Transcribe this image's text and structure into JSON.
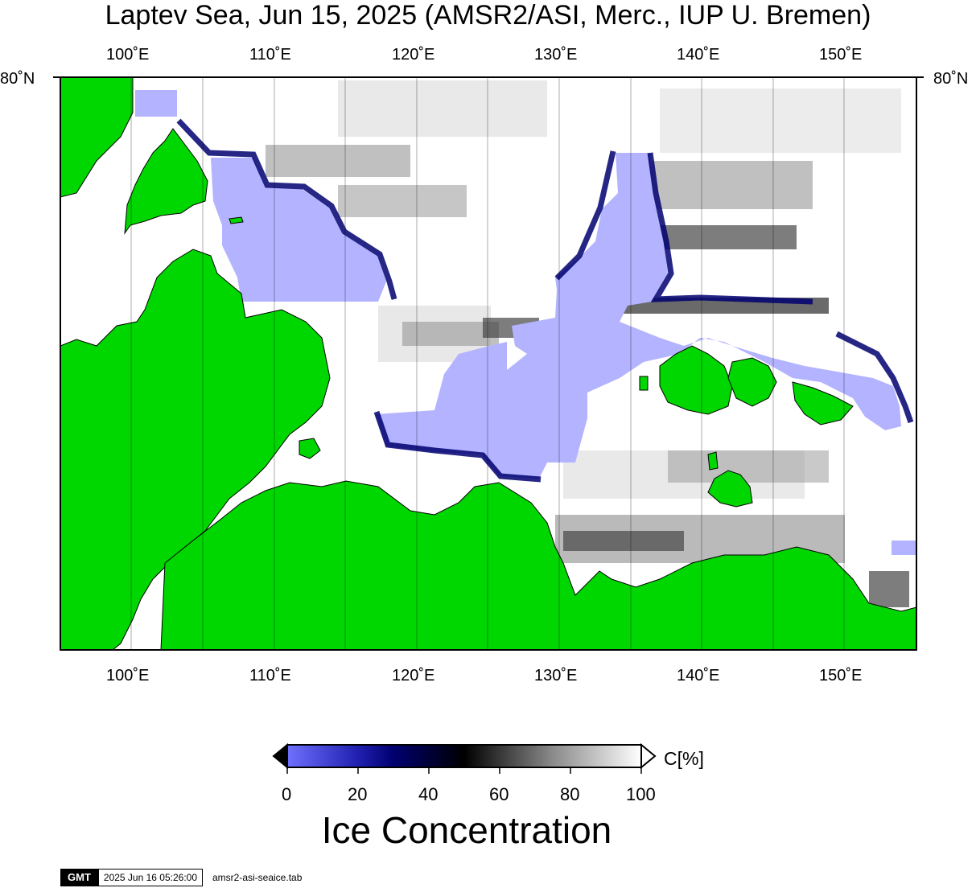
{
  "title": "Laptev Sea, Jun 15, 2025 (AMSR2/ASI, Merc., IUP U. Bremen)",
  "map": {
    "lon_ticks": [
      "100˚E",
      "110˚E",
      "120˚E",
      "130˚E",
      "140˚E",
      "150˚E"
    ],
    "lat_tick": "80˚N",
    "land_color": "#00d600",
    "open_water_color": "#b3b3ff",
    "background_color": "#ffffff"
  },
  "colorbar": {
    "tick_labels": [
      "0",
      "20",
      "40",
      "60",
      "80",
      "100"
    ],
    "unit": "C[%]",
    "title": "Ice Concentration"
  },
  "footer": {
    "logo": "GMT",
    "timestamp": "2025 Jun 16 05:26:00",
    "command": "amsr2-asi-seaice.tab"
  }
}
